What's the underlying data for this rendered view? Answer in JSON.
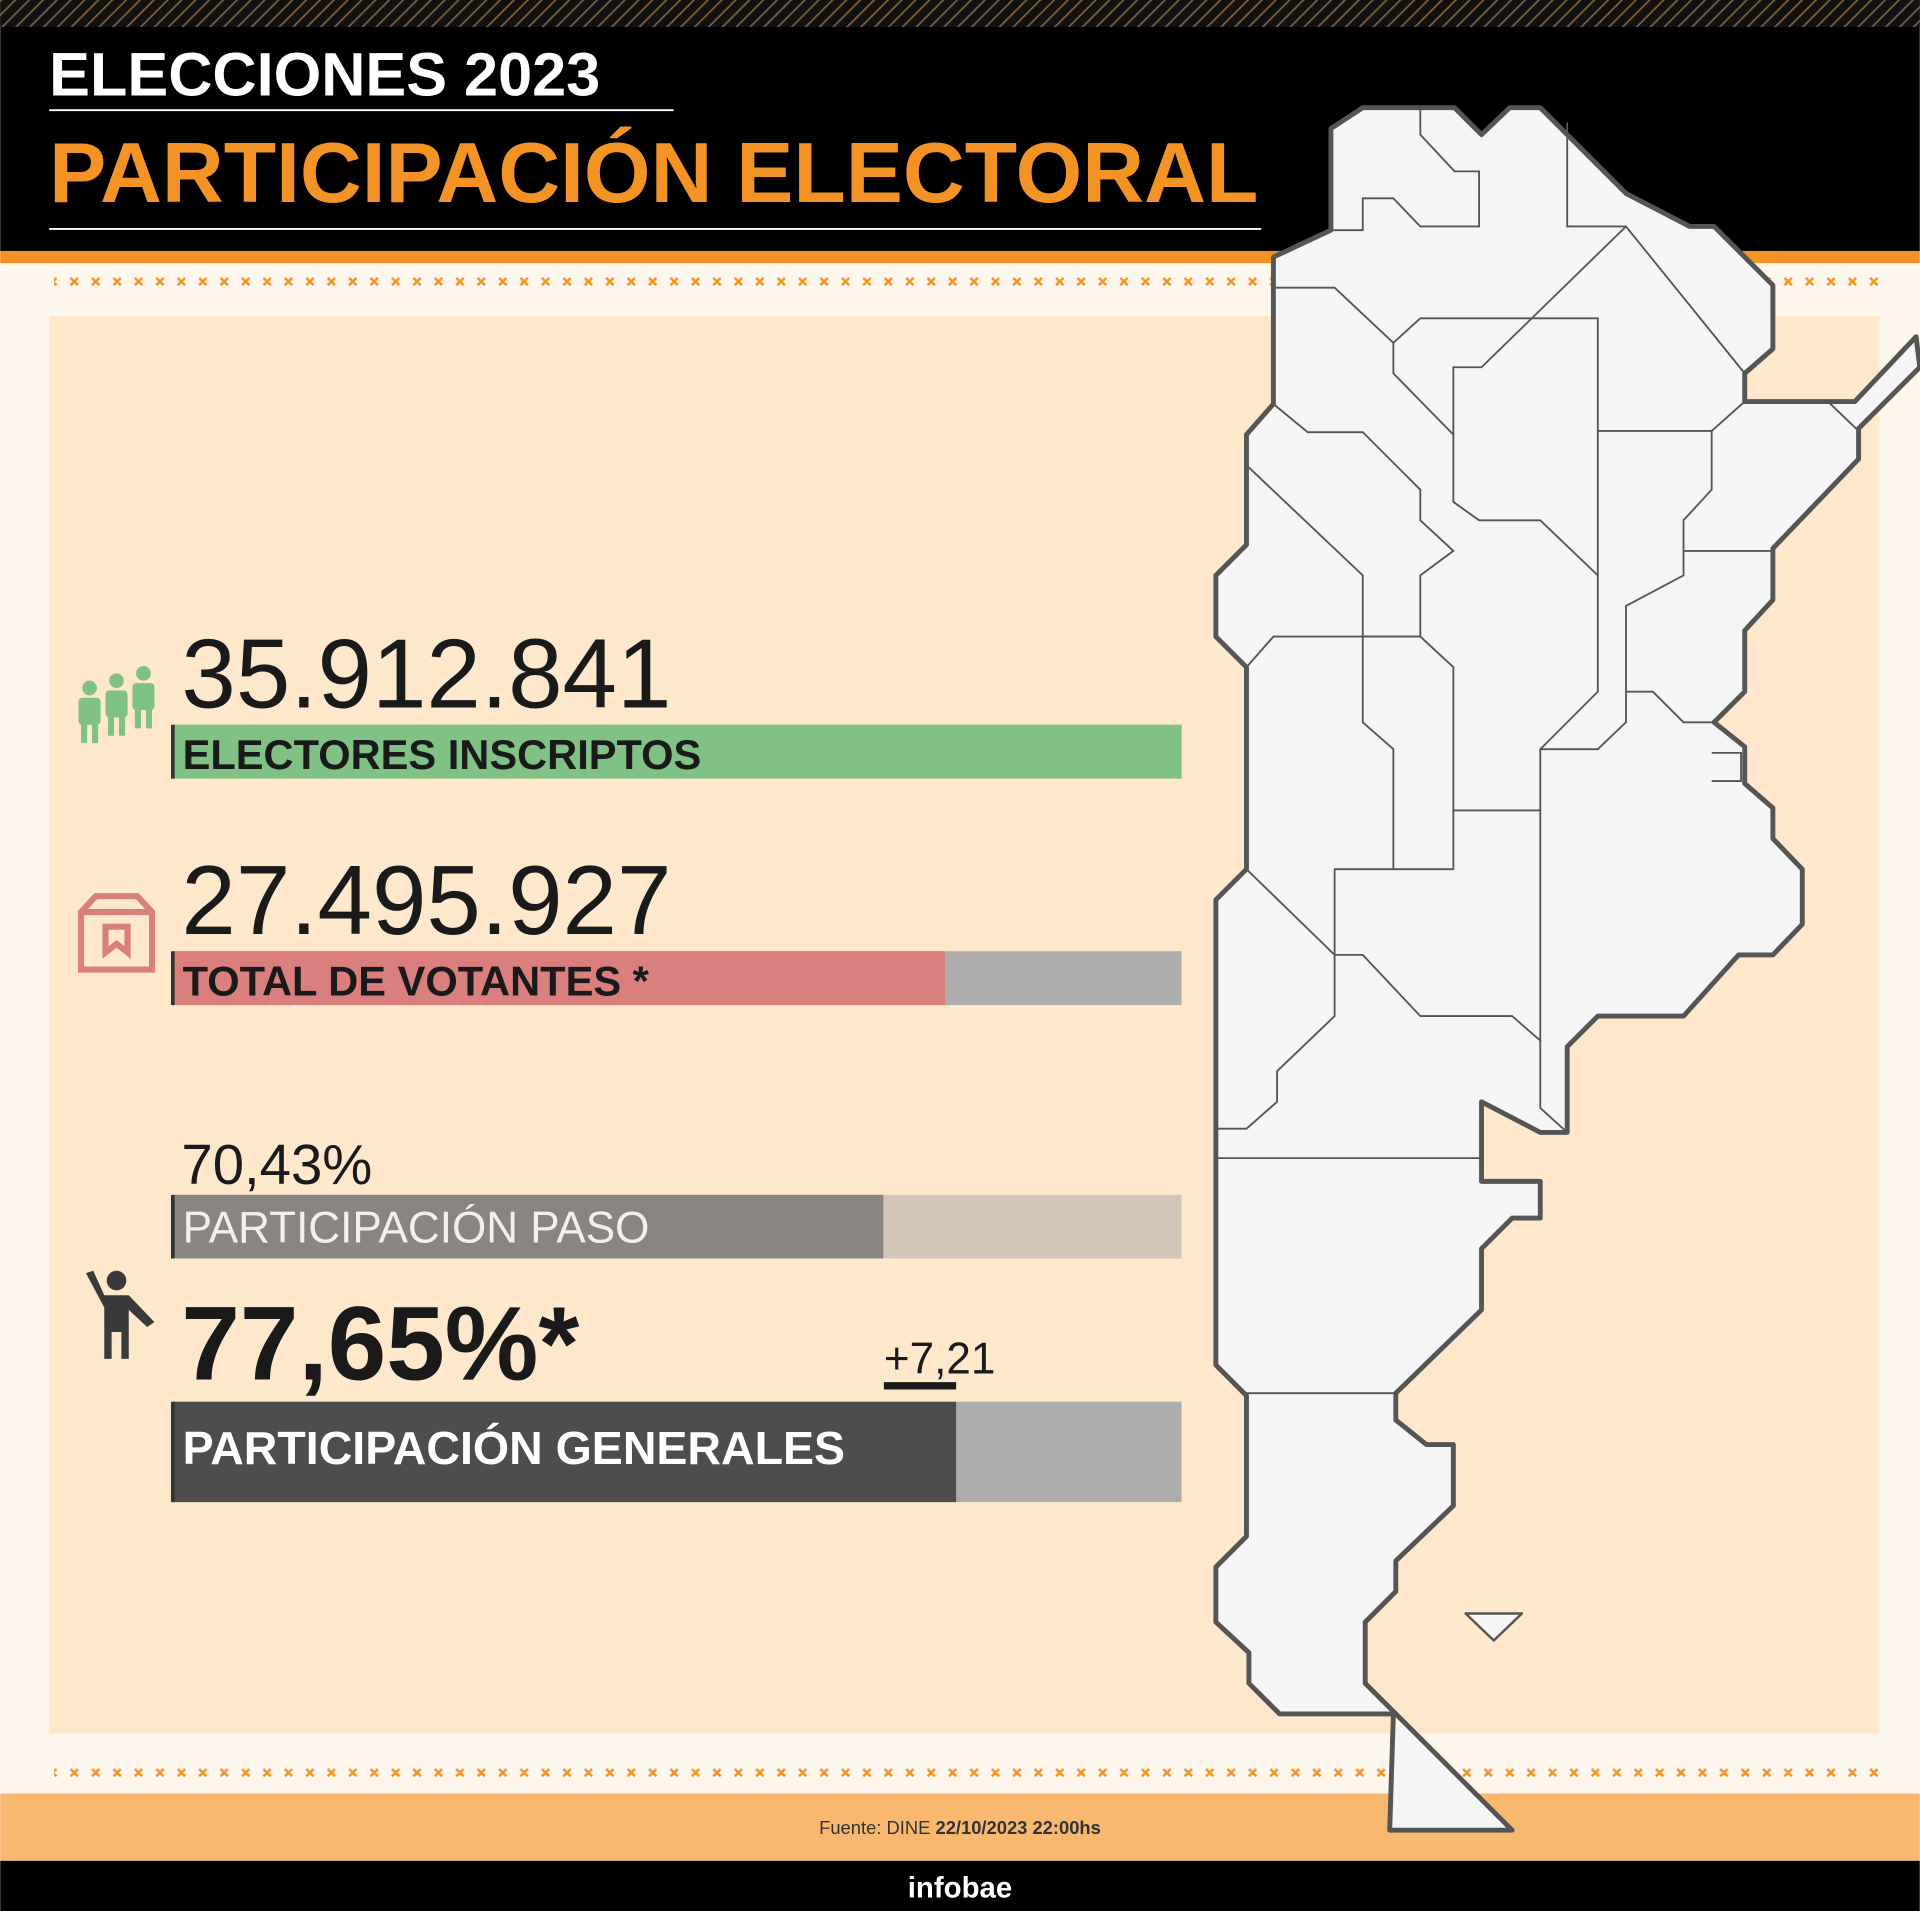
{
  "header": {
    "kicker": "ELECCIONES 2023",
    "title": "PARTICIPACIÓN ELECTORAL"
  },
  "stats": {
    "registered": {
      "value": 35912841,
      "label": "35.912.841",
      "title": "ELECTORES INSCRIPTOS",
      "color": "#80c283"
    },
    "voters": {
      "value": 27495927,
      "label": "27.495.927",
      "title": "TOTAL DE VOTANTES *",
      "color": "#d97f7d"
    },
    "paso": {
      "value": 70.43,
      "label": "70,43%",
      "title": "PARTICIPACIÓN PASO",
      "color": "#8a8580"
    },
    "general": {
      "value": 77.65,
      "label": "77,65%*",
      "title": "PARTICIPACIÓN GENERALES",
      "color": "#4d4d4d",
      "change": {
        "value": 7.21,
        "label": "+7,21"
      }
    }
  },
  "footer": {
    "source": "Fuente: DINE",
    "date": "22/10/2023 22:00hs",
    "brand": "infobae"
  }
}
